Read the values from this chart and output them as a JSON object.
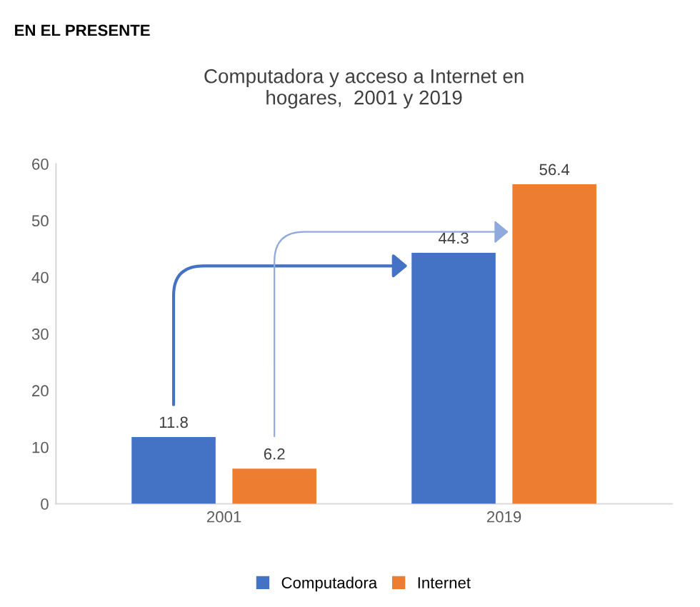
{
  "chart_data": {
    "type": "bar",
    "title": "Computadora y acceso a Internet en\nhogares,  2001 y 2019",
    "annotations": [
      "EN EL PRESENTE"
    ],
    "categories": [
      "2001",
      "2019"
    ],
    "series": [
      {
        "name": "Computadora",
        "color": "#4472c4",
        "values": [
          11.8,
          44.3
        ]
      },
      {
        "name": "Internet",
        "color": "#ed7d31",
        "values": [
          6.2,
          56.4
        ]
      }
    ],
    "ylim": [
      0,
      60
    ],
    "yticks": [
      0,
      10,
      20,
      30,
      40,
      50,
      60
    ],
    "data_labels": true,
    "legend": "bottom",
    "grid": false
  }
}
